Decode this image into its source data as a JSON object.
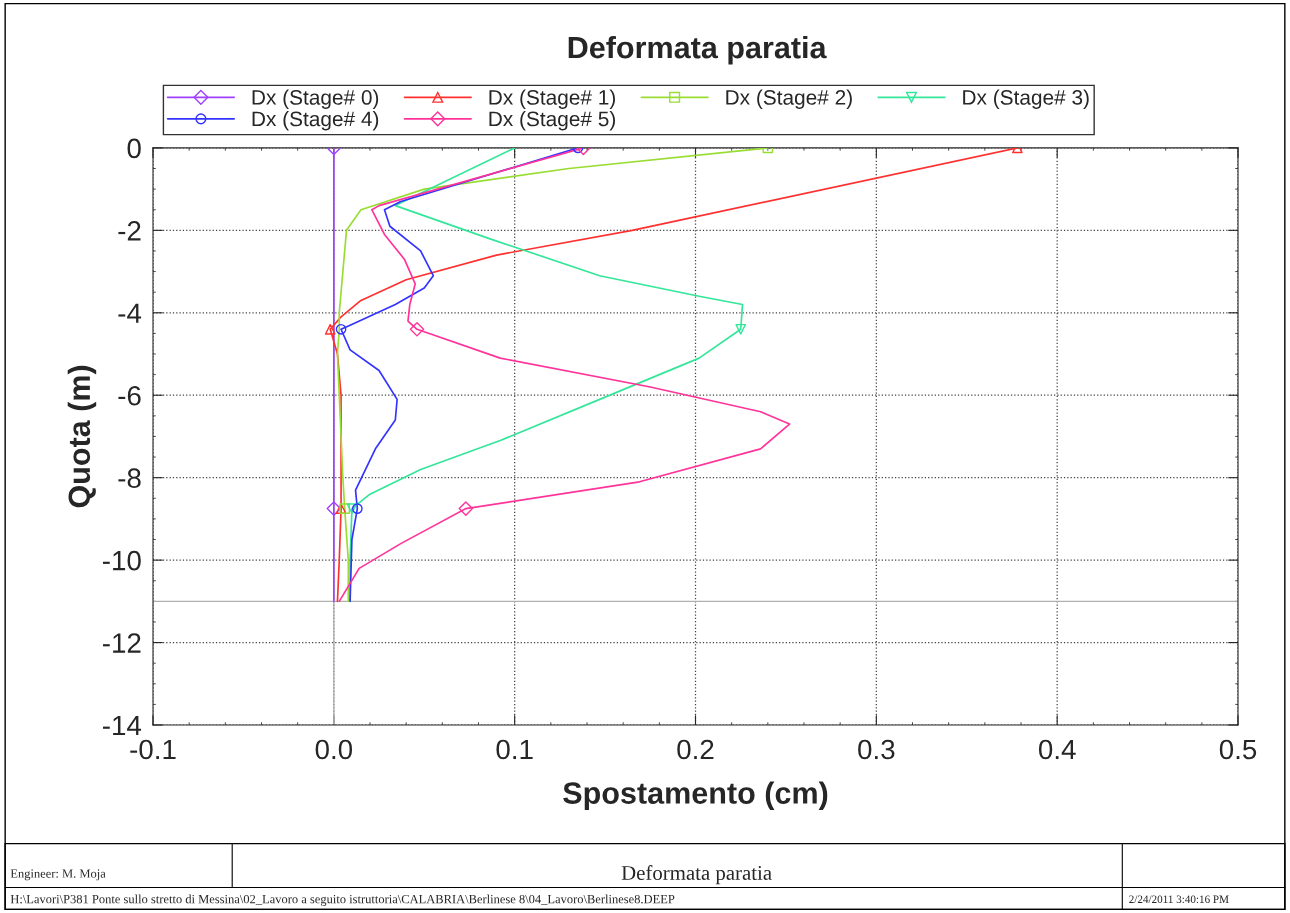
{
  "chart_data": {
    "type": "line",
    "title": "Deformata paratia",
    "xlabel": "Spostamento (cm)",
    "ylabel": "Quota (m)",
    "xlim": [
      -0.1,
      0.5
    ],
    "xticks": [
      {
        "value": -0.1,
        "label": "-0.1"
      },
      {
        "value": 0,
        "label": "0.0"
      },
      {
        "value": 0.1,
        "label": "0.1"
      },
      {
        "value": 0.2,
        "label": "0.2"
      },
      {
        "value": 0.3,
        "label": "0.3"
      },
      {
        "value": 0.4,
        "label": "0.4"
      },
      {
        "value": 0.5,
        "label": "0.5"
      }
    ],
    "ylim": [
      -14,
      0
    ],
    "yticks": [
      -14,
      -12,
      -10,
      -8,
      -6,
      -4,
      -2,
      0
    ],
    "grid": true,
    "legend": "top",
    "ref_lines": [
      {
        "axis": "x",
        "value": 0,
        "color": "#b0b0b0"
      },
      {
        "axis": "y",
        "value": -11,
        "color": "#b0b0b0"
      }
    ],
    "series": [
      {
        "name": "Dx (Stage# 0)",
        "color": "#a040ff",
        "x": [
          0,
          0,
          0,
          0
        ],
        "values": [
          0,
          -4.4,
          -8.75,
          -11
        ]
      },
      {
        "name": "Dx (Stage# 1)",
        "color": "#ff3030",
        "x": [
          0.378,
          0.165,
          0.09,
          0.04,
          0.015,
          0.004,
          -0.002,
          0.002,
          0.004,
          0.004,
          0.004,
          0.003,
          0.002
        ],
        "values": [
          0,
          -2,
          -2.6,
          -3.2,
          -3.7,
          -4.1,
          -4.4,
          -5,
          -6,
          -8,
          -8.75,
          -10,
          -11
        ]
      },
      {
        "name": "Dx (Stage# 2)",
        "color": "#99dd33",
        "x": [
          0.24,
          0.13,
          0.05,
          0.015,
          0.007,
          0.005,
          0.003,
          0.003,
          0.002,
          0.003,
          0.004,
          0.005,
          0.006,
          0.008,
          0.008
        ],
        "values": [
          0,
          -0.5,
          -1.0,
          -1.5,
          -2,
          -3,
          -4,
          -4.4,
          -5,
          -6,
          -7,
          -8,
          -8.75,
          -10,
          -11
        ]
      },
      {
        "name": "Dx (Stage# 3)",
        "color": "#33e699",
        "x": [
          0.1,
          0.034,
          0.086,
          0.147,
          0.202,
          0.226,
          0.225,
          0.202,
          0.147,
          0.092,
          0.048,
          0.02,
          0.01,
          0.009,
          0.009
        ],
        "values": [
          0,
          -1.4,
          -2.2,
          -3.1,
          -3.6,
          -3.8,
          -4.4,
          -5.1,
          -6.1,
          -7.1,
          -7.8,
          -8.4,
          -8.75,
          -10,
          -11
        ]
      },
      {
        "name": "Dx (Stage# 4)",
        "color": "#3333ff",
        "x": [
          0.135,
          0.037,
          0.028,
          0.031,
          0.048,
          0.055,
          0.05,
          0.034,
          0.009,
          0.004,
          0.009,
          0.025,
          0.035,
          0.034,
          0.023,
          0.012,
          0.013,
          0.01,
          0.009
        ],
        "values": [
          0,
          -1.3,
          -1.5,
          -1.9,
          -2.5,
          -3.1,
          -3.4,
          -3.8,
          -4.3,
          -4.4,
          -4.9,
          -5.4,
          -6.1,
          -6.6,
          -7.3,
          -8.3,
          -8.75,
          -9.5,
          -11
        ]
      },
      {
        "name": "Dx (Stage# 5)",
        "color": "#ff3399",
        "x": [
          0.138,
          0.025,
          0.021,
          0.028,
          0.039,
          0.045,
          0.042,
          0.041,
          0.046,
          0.092,
          0.175,
          0.236,
          0.252,
          0.236,
          0.169,
          0.073,
          0.037,
          0.014,
          0.003
        ],
        "values": [
          0,
          -1.4,
          -1.5,
          -2.1,
          -2.7,
          -3.3,
          -3.8,
          -4.2,
          -4.4,
          -5.1,
          -5.8,
          -6.4,
          -6.7,
          -7.3,
          -8.1,
          -8.75,
          -9.6,
          -10.2,
          -11
        ]
      },
      {
        "type": "scatter",
        "color": "#a040ff",
        "marker": "diamond",
        "x": [
          0,
          0
        ],
        "values": [
          0,
          -8.75
        ]
      },
      {
        "type": "scatter",
        "color": "#ff3030",
        "marker": "triangle",
        "x": [
          0.378,
          -0.002,
          0.004
        ],
        "values": [
          0,
          -4.4,
          -8.75
        ]
      },
      {
        "type": "scatter",
        "color": "#99dd33",
        "marker": "square",
        "x": [
          0.24,
          0.006
        ],
        "values": [
          0,
          -8.75
        ]
      },
      {
        "type": "scatter",
        "color": "#33e699",
        "marker": "triangle_down",
        "x": [
          0.225,
          0.01
        ],
        "values": [
          -4.4,
          -8.75
        ]
      },
      {
        "type": "scatter",
        "color": "#3333ff",
        "marker": "circle",
        "x": [
          0.135,
          0.004,
          0.013
        ],
        "values": [
          0,
          -4.4,
          -8.75
        ]
      },
      {
        "type": "scatter",
        "color": "#ff3399",
        "marker": "diamond",
        "x": [
          0.138,
          0.046,
          0.073
        ],
        "values": [
          0,
          -4.4,
          -8.75
        ]
      }
    ],
    "annotations": [
      "Engineer: M. Moja",
      "Deformata paratia",
      "H:\\Lavori\\P381 Ponte sullo stretto di Messina\\02_Lavoro a seguito istruttoria\\CALABRIA\\Berlinese 8\\04_Lavoro\\Berlinese8.DEEP",
      "2/24/2011 3:40:16 PM"
    ]
  }
}
